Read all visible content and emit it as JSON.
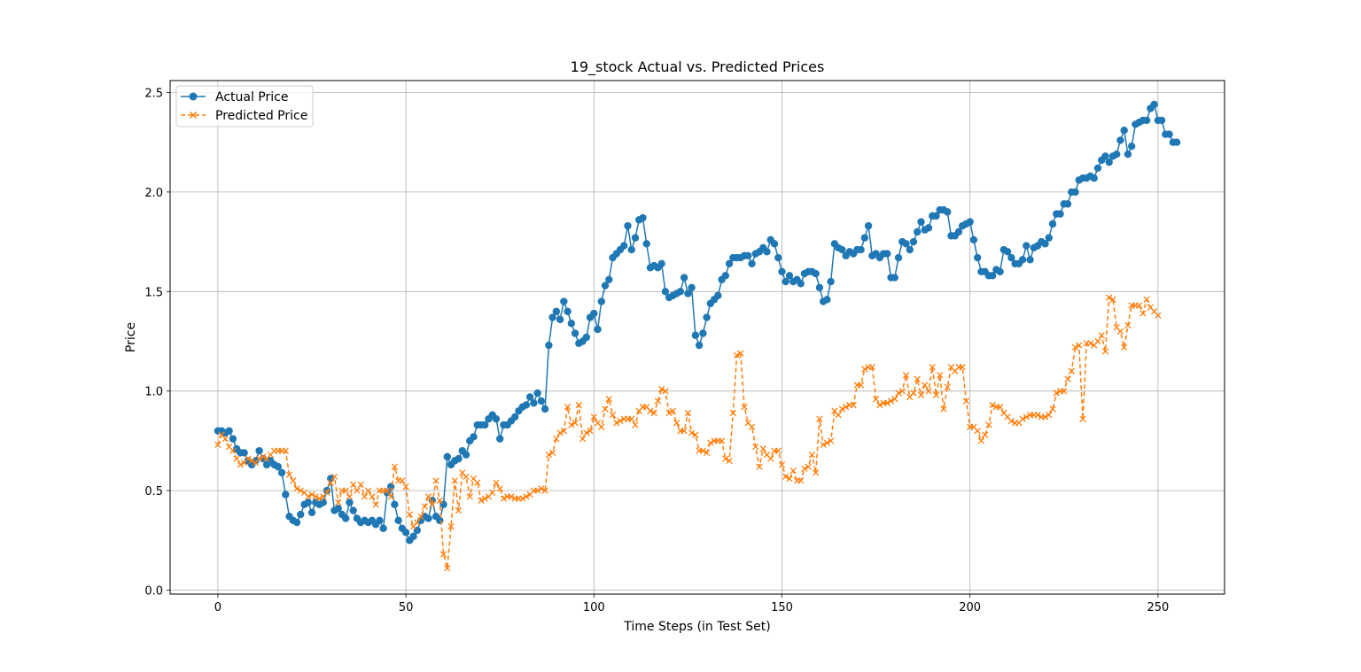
{
  "chart_data": {
    "type": "line",
    "title": "19_stock Actual vs. Predicted Prices",
    "xlabel": "Time Steps (in Test Set)",
    "ylabel": "Price",
    "xlim": [
      -12.7,
      267.7
    ],
    "ylim": [
      -0.02,
      2.56
    ],
    "xticks": [
      0,
      50,
      100,
      150,
      200,
      250
    ],
    "yticks": [
      0.0,
      0.5,
      1.0,
      1.5,
      2.0,
      2.5
    ],
    "xtick_labels": [
      "0",
      "50",
      "100",
      "150",
      "200",
      "250"
    ],
    "ytick_labels": [
      "0.0",
      "0.5",
      "1.0",
      "1.5",
      "2.0",
      "2.5"
    ],
    "grid": true,
    "legend_position": "top-left",
    "series": [
      {
        "name": "Actual Price",
        "color": "#1f77b4",
        "line": "solid",
        "marker": "circle",
        "values": [
          0.8,
          0.8,
          0.79,
          0.8,
          0.76,
          0.71,
          0.69,
          0.69,
          0.65,
          0.63,
          0.65,
          0.7,
          0.66,
          0.63,
          0.65,
          0.63,
          0.62,
          0.59,
          0.48,
          0.37,
          0.35,
          0.34,
          0.38,
          0.43,
          0.44,
          0.39,
          0.44,
          0.43,
          0.44,
          0.5,
          0.56,
          0.4,
          0.41,
          0.38,
          0.36,
          0.44,
          0.4,
          0.36,
          0.34,
          0.35,
          0.34,
          0.35,
          0.33,
          0.35,
          0.31,
          0.49,
          0.52,
          0.43,
          0.35,
          0.31,
          0.29,
          0.25,
          0.27,
          0.3,
          0.35,
          0.37,
          0.36,
          0.45,
          0.37,
          0.35,
          0.43,
          0.67,
          0.63,
          0.65,
          0.66,
          0.7,
          0.68,
          0.75,
          0.77,
          0.83,
          0.83,
          0.83,
          0.86,
          0.88,
          0.86,
          0.76,
          0.83,
          0.83,
          0.85,
          0.87,
          0.9,
          0.92,
          0.93,
          0.97,
          0.94,
          0.99,
          0.95,
          0.91,
          1.23,
          1.37,
          1.4,
          1.36,
          1.45,
          1.4,
          1.34,
          1.29,
          1.24,
          1.25,
          1.27,
          1.37,
          1.39,
          1.31,
          1.45,
          1.53,
          1.56,
          1.67,
          1.69,
          1.71,
          1.73,
          1.83,
          1.71,
          1.77,
          1.86,
          1.87,
          1.74,
          1.62,
          1.63,
          1.62,
          1.64,
          1.5,
          1.47,
          1.48,
          1.49,
          1.5,
          1.57,
          1.49,
          1.52,
          1.28,
          1.23,
          1.29,
          1.37,
          1.44,
          1.46,
          1.48,
          1.56,
          1.58,
          1.64,
          1.67,
          1.67,
          1.67,
          1.68,
          1.68,
          1.64,
          1.69,
          1.7,
          1.72,
          1.7,
          1.76,
          1.74,
          1.67,
          1.6,
          1.55,
          1.58,
          1.55,
          1.56,
          1.54,
          1.59,
          1.6,
          1.6,
          1.59,
          1.52,
          1.45,
          1.46,
          1.55,
          1.74,
          1.72,
          1.71,
          1.68,
          1.7,
          1.69,
          1.71,
          1.71,
          1.77,
          1.83,
          1.68,
          1.69,
          1.67,
          1.69,
          1.69,
          1.57,
          1.57,
          1.67,
          1.75,
          1.74,
          1.71,
          1.75,
          1.8,
          1.85,
          1.81,
          1.82,
          1.88,
          1.88,
          1.91,
          1.91,
          1.9,
          1.78,
          1.78,
          1.8,
          1.83,
          1.84,
          1.85,
          1.76,
          1.67,
          1.6,
          1.6,
          1.58,
          1.58,
          1.61,
          1.6,
          1.71,
          1.7,
          1.67,
          1.64,
          1.64,
          1.66,
          1.73,
          1.66,
          1.72,
          1.73,
          1.75,
          1.74,
          1.77,
          1.84,
          1.89,
          1.89,
          1.94,
          1.94,
          2.0,
          2.0,
          2.06,
          2.07,
          2.07,
          2.08,
          2.07,
          2.12,
          2.16,
          2.18,
          2.15,
          2.18,
          2.19,
          2.26,
          2.31,
          2.19,
          2.23,
          2.34,
          2.35,
          2.36,
          2.36,
          2.42,
          2.44,
          2.36,
          2.36,
          2.29,
          2.29,
          2.25,
          2.25
        ]
      },
      {
        "name": "Predicted Price",
        "color": "#ff7f0e",
        "line": "dashed",
        "marker": "x",
        "values": [
          0.73,
          0.78,
          0.76,
          0.72,
          0.7,
          0.66,
          0.63,
          0.64,
          0.66,
          0.65,
          0.64,
          0.66,
          0.67,
          0.66,
          0.68,
          0.7,
          0.7,
          0.7,
          0.7,
          0.58,
          0.55,
          0.51,
          0.5,
          0.49,
          0.47,
          0.48,
          0.47,
          0.46,
          0.47,
          0.49,
          0.54,
          0.57,
          0.44,
          0.5,
          0.5,
          0.47,
          0.53,
          0.5,
          0.53,
          0.47,
          0.5,
          0.47,
          0.43,
          0.5,
          0.5,
          0.5,
          0.47,
          0.62,
          0.55,
          0.55,
          0.52,
          0.38,
          0.32,
          0.34,
          0.37,
          0.42,
          0.47,
          0.43,
          0.55,
          0.45,
          0.18,
          0.11,
          0.32,
          0.55,
          0.4,
          0.59,
          0.57,
          0.47,
          0.56,
          0.54,
          0.45,
          0.46,
          0.47,
          0.49,
          0.54,
          0.51,
          0.46,
          0.47,
          0.47,
          0.46,
          0.46,
          0.46,
          0.47,
          0.48,
          0.5,
          0.5,
          0.51,
          0.5,
          0.68,
          0.69,
          0.76,
          0.79,
          0.8,
          0.92,
          0.83,
          0.84,
          0.93,
          0.76,
          0.79,
          0.8,
          0.87,
          0.84,
          0.82,
          0.91,
          0.96,
          0.88,
          0.84,
          0.85,
          0.86,
          0.86,
          0.86,
          0.83,
          0.9,
          0.92,
          0.92,
          0.9,
          0.89,
          0.95,
          1.01,
          1.0,
          0.89,
          0.9,
          0.84,
          0.8,
          0.8,
          0.89,
          0.79,
          0.78,
          0.7,
          0.7,
          0.69,
          0.74,
          0.75,
          0.75,
          0.75,
          0.66,
          0.65,
          0.89,
          1.18,
          1.19,
          0.92,
          0.84,
          0.82,
          0.72,
          0.62,
          0.71,
          0.68,
          0.66,
          0.7,
          0.7,
          0.63,
          0.57,
          0.56,
          0.6,
          0.55,
          0.55,
          0.61,
          0.62,
          0.68,
          0.59,
          0.86,
          0.73,
          0.74,
          0.75,
          0.9,
          0.88,
          0.91,
          0.92,
          0.93,
          0.93,
          1.03,
          1.03,
          1.11,
          1.12,
          1.12,
          0.96,
          0.93,
          0.94,
          0.94,
          0.95,
          0.96,
          0.99,
          1.0,
          1.08,
          0.97,
          0.99,
          1.06,
          0.98,
          1.03,
          1.0,
          1.12,
          0.98,
          1.08,
          0.91,
          1.02,
          1.12,
          1.1,
          1.12,
          1.12,
          0.95,
          0.82,
          0.82,
          0.8,
          0.75,
          0.78,
          0.83,
          0.93,
          0.92,
          0.92,
          0.89,
          0.87,
          0.85,
          0.84,
          0.84,
          0.86,
          0.87,
          0.88,
          0.88,
          0.88,
          0.87,
          0.87,
          0.88,
          0.91,
          0.99,
          1.0,
          1.0,
          1.06,
          1.1,
          1.22,
          1.23,
          0.86,
          1.24,
          1.24,
          1.23,
          1.25,
          1.28,
          1.2,
          1.47,
          1.46,
          1.32,
          1.3,
          1.22,
          1.33,
          1.43,
          1.43,
          1.43,
          1.39,
          1.46,
          1.42,
          1.4,
          1.38
        ]
      }
    ]
  }
}
